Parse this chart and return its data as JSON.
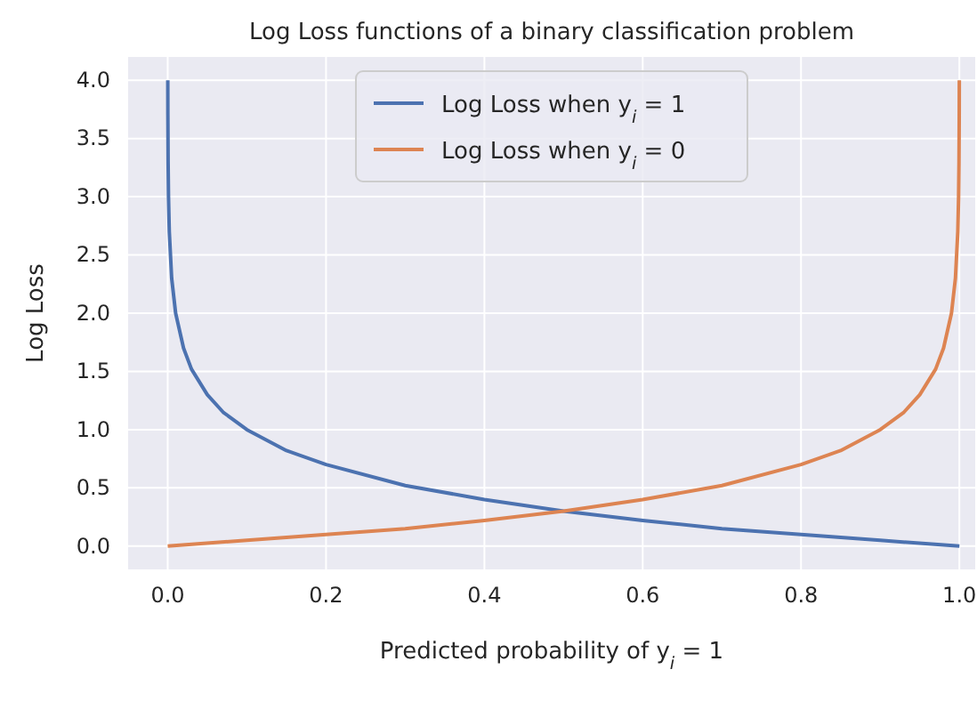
{
  "chart_data": {
    "type": "line",
    "title": "Log Loss functions of a binary classification problem",
    "xlabel": "Predicted probability of y$_{i}$ = 1",
    "ylabel": "Log Loss",
    "series": [
      {
        "name": "Log Loss when y$_{i}$ = 1",
        "color": "#4c72b0",
        "x": [
          0.0001,
          0.0002,
          0.0005,
          0.001,
          0.002,
          0.005,
          0.01,
          0.02,
          0.03,
          0.05,
          0.07,
          0.1,
          0.15,
          0.2,
          0.3,
          0.4,
          0.5,
          0.6,
          0.7,
          0.8,
          0.9,
          1.0
        ],
        "values": [
          4.0,
          3.7,
          3.3,
          3.0,
          2.7,
          2.3,
          2.0,
          1.7,
          1.52,
          1.3,
          1.15,
          1.0,
          0.82,
          0.7,
          0.52,
          0.4,
          0.3,
          0.22,
          0.15,
          0.1,
          0.05,
          0.0
        ]
      },
      {
        "name": "Log Loss when y$_{i}$ = 0",
        "color": "#dd8452",
        "x": [
          0.0,
          0.1,
          0.2,
          0.3,
          0.4,
          0.5,
          0.6,
          0.7,
          0.8,
          0.85,
          0.9,
          0.93,
          0.95,
          0.97,
          0.98,
          0.99,
          0.995,
          0.998,
          0.999,
          0.9995,
          0.9998,
          0.9999
        ],
        "values": [
          0.0,
          0.05,
          0.1,
          0.15,
          0.22,
          0.3,
          0.4,
          0.52,
          0.7,
          0.82,
          1.0,
          1.15,
          1.3,
          1.52,
          1.7,
          2.0,
          2.3,
          2.7,
          3.0,
          3.3,
          3.7,
          4.0
        ]
      }
    ],
    "xlim": [
      -0.05,
      1.02
    ],
    "ylim": [
      -0.2,
      4.2
    ],
    "xticks": [
      {
        "value": 0,
        "label": "0.0"
      },
      {
        "value": 0.2,
        "label": "0.2"
      },
      {
        "value": 0.4,
        "label": "0.4"
      },
      {
        "value": 0.6,
        "label": "0.6"
      },
      {
        "value": 0.8,
        "label": "0.8"
      },
      {
        "value": 1,
        "label": "1.0"
      }
    ],
    "yticks": [
      {
        "value": 0,
        "label": "0.0"
      },
      {
        "value": 0.5,
        "label": "0.5"
      },
      {
        "value": 1,
        "label": "1.0"
      },
      {
        "value": 1.5,
        "label": "1.5"
      },
      {
        "value": 2,
        "label": "2.0"
      },
      {
        "value": 2.5,
        "label": "2.5"
      },
      {
        "value": 3,
        "label": "3.0"
      },
      {
        "value": 3.5,
        "label": "3.5"
      },
      {
        "value": 4,
        "label": "4.0"
      }
    ],
    "grid": true,
    "legend": "top",
    "marker": "none",
    "line_style": "solid"
  }
}
